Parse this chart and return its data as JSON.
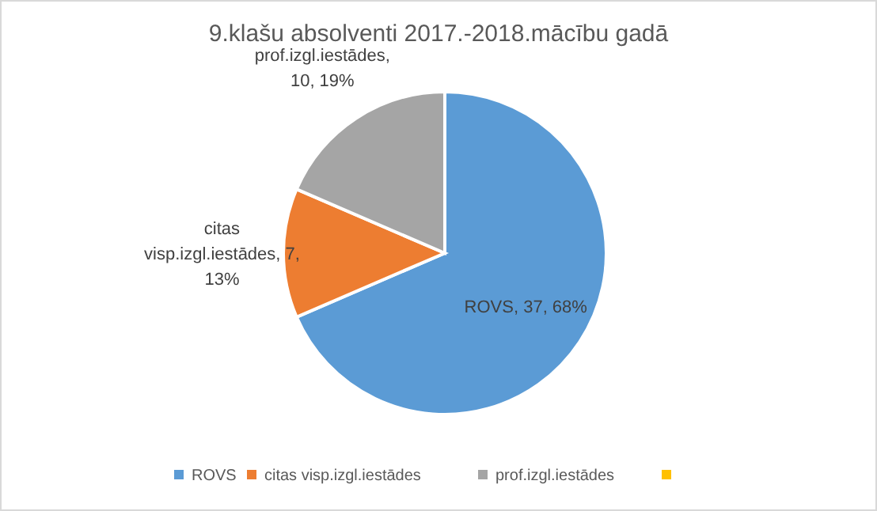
{
  "chart_data": {
    "type": "pie",
    "title": "9.klašu absolventi 2017.-2018.mācību gadā",
    "categories": [
      "ROVS",
      "citas visp.izgl.iestādes",
      "prof.izgl.iestādes",
      null
    ],
    "values": [
      37,
      7,
      10,
      null
    ],
    "colors": [
      "#5b9bd5",
      "#ed7d31",
      "#a5a5a5",
      "#ffc000"
    ],
    "value_labels": [
      "ROVS, 37, 68%",
      "citas visp.izgl.iestādes, 7, 13%",
      "prof.izgl.iestādes, 10, 19%",
      null
    ],
    "legend": "bottom"
  }
}
